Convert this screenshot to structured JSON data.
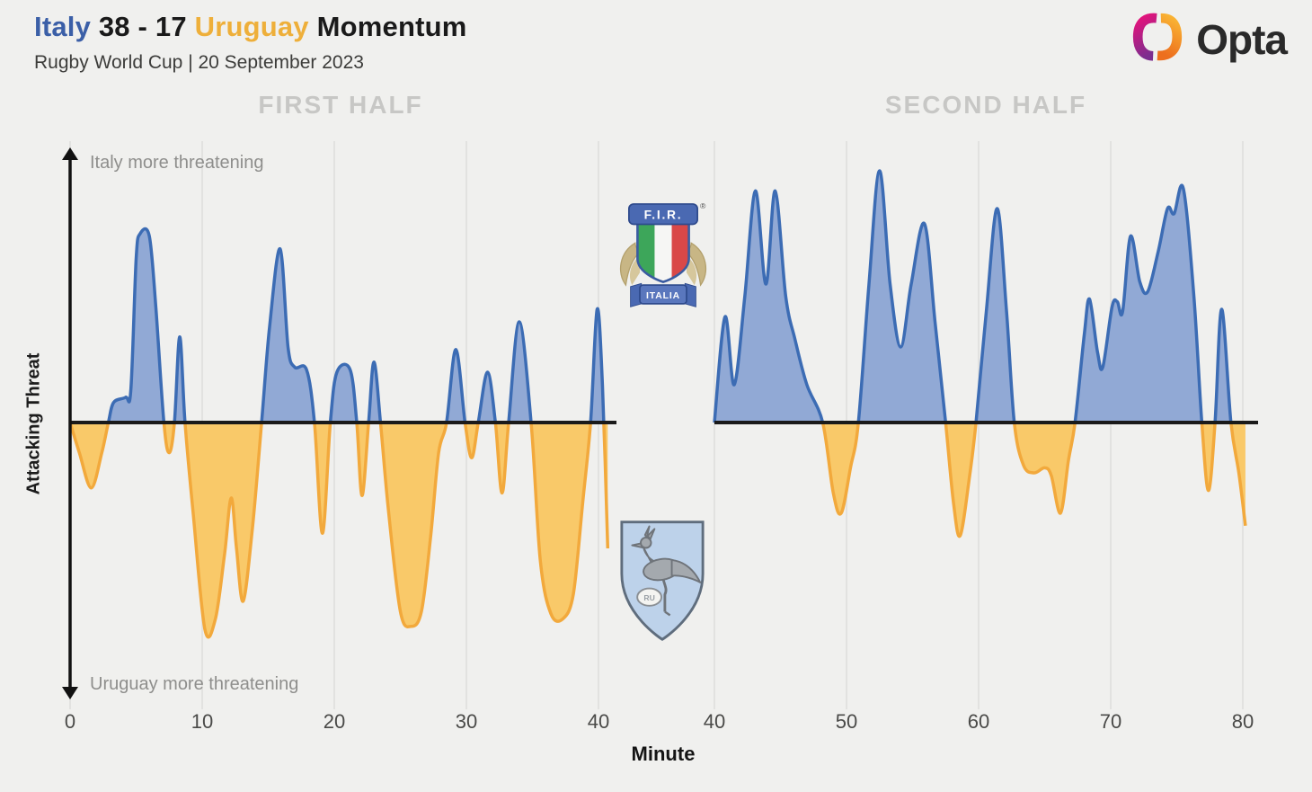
{
  "header": {
    "team_home": "Italy",
    "score": "38 - 17",
    "team_away": "Uruguay",
    "title_suffix": "Momentum",
    "subtitle": "Rugby World Cup | 20 September 2023"
  },
  "brand": {
    "logo_text": "Opta"
  },
  "sections": {
    "first_half": "FIRST HALF",
    "second_half": "SECOND HALF"
  },
  "axis": {
    "y_label": "Attacking Threat",
    "x_label": "Minute",
    "top_annotation": "Italy more threatening",
    "bottom_annotation": "Uruguay more threatening"
  },
  "badges": {
    "italy": {
      "acronym": "F.I.R.",
      "banner": "ITALIA",
      "registered": "®"
    },
    "uruguay": {
      "monogram": "RU"
    }
  },
  "colors": {
    "background": "#f0f0ee",
    "italy_blue_text": "#3b5fa7",
    "uruguay_orange_text": "#eeaf3a",
    "area_blue_fill": "#91a9d5",
    "area_blue_stroke": "#3c6cb4",
    "area_orange_fill": "#f9c969",
    "area_orange_stroke": "#f2a93c",
    "zero_line": "#1a1a1a",
    "gridline": "#e2e2e0",
    "axis_arrow": "#111111"
  },
  "chart_data": {
    "type": "area",
    "title": "Italy 38 - 17 Uruguay Momentum",
    "xlabel": "Minute",
    "ylabel": "Attacking Threat",
    "value_range": [
      -1,
      1
    ],
    "positive_meaning": "Italy more threatening",
    "negative_meaning": "Uruguay more threatening",
    "grid": "vertical-only",
    "halves": [
      {
        "label": "FIRST HALF",
        "x_ticks": [
          0,
          10,
          20,
          30,
          40
        ],
        "points": [
          [
            0,
            0
          ],
          [
            0.7,
            -0.12
          ],
          [
            1.6,
            -0.26
          ],
          [
            2.4,
            -0.12
          ],
          [
            2.9,
            0
          ],
          [
            3.3,
            0.08
          ],
          [
            4.2,
            0.1
          ],
          [
            4.6,
            0.13
          ],
          [
            5.0,
            0.65
          ],
          [
            5.3,
            0.75
          ],
          [
            6.0,
            0.74
          ],
          [
            6.5,
            0.45
          ],
          [
            7.1,
            0
          ],
          [
            7.5,
            -0.12
          ],
          [
            7.9,
            0
          ],
          [
            8.3,
            0.34
          ],
          [
            8.7,
            0
          ],
          [
            9.3,
            -0.35
          ],
          [
            10.2,
            -0.82
          ],
          [
            11.0,
            -0.78
          ],
          [
            11.7,
            -0.52
          ],
          [
            12.2,
            -0.3
          ],
          [
            12.6,
            -0.5
          ],
          [
            13.1,
            -0.71
          ],
          [
            13.8,
            -0.42
          ],
          [
            14.5,
            0
          ],
          [
            15.1,
            0.38
          ],
          [
            15.9,
            0.69
          ],
          [
            16.5,
            0.3
          ],
          [
            17.0,
            0.22
          ],
          [
            17.9,
            0.21
          ],
          [
            18.5,
            0
          ],
          [
            19.1,
            -0.44
          ],
          [
            19.7,
            0
          ],
          [
            20.2,
            0.2
          ],
          [
            21.2,
            0.21
          ],
          [
            21.7,
            0
          ],
          [
            22.1,
            -0.29
          ],
          [
            22.6,
            0
          ],
          [
            23.0,
            0.24
          ],
          [
            23.5,
            0
          ],
          [
            24.1,
            -0.35
          ],
          [
            25.0,
            -0.75
          ],
          [
            25.8,
            -0.81
          ],
          [
            26.6,
            -0.75
          ],
          [
            27.3,
            -0.45
          ],
          [
            27.9,
            -0.12
          ],
          [
            28.5,
            0
          ],
          [
            29.2,
            0.29
          ],
          [
            29.9,
            0
          ],
          [
            30.4,
            -0.14
          ],
          [
            30.9,
            0
          ],
          [
            31.6,
            0.2
          ],
          [
            32.2,
            0
          ],
          [
            32.7,
            -0.28
          ],
          [
            33.2,
            0
          ],
          [
            34.0,
            0.4
          ],
          [
            34.9,
            0
          ],
          [
            35.6,
            -0.55
          ],
          [
            36.4,
            -0.76
          ],
          [
            37.3,
            -0.78
          ],
          [
            38.1,
            -0.68
          ],
          [
            38.8,
            -0.32
          ],
          [
            39.4,
            0
          ],
          [
            39.9,
            0.45
          ],
          [
            40.3,
            0.15
          ],
          [
            40.7,
            -0.5
          ]
        ]
      },
      {
        "label": "SECOND HALF",
        "x_ticks": [
          40,
          50,
          60,
          70,
          80
        ],
        "points": [
          [
            40,
            0
          ],
          [
            40.8,
            0.42
          ],
          [
            41.5,
            0.15
          ],
          [
            42.3,
            0.5
          ],
          [
            43.1,
            0.92
          ],
          [
            43.9,
            0.55
          ],
          [
            44.6,
            0.92
          ],
          [
            45.4,
            0.5
          ],
          [
            46.1,
            0.33
          ],
          [
            47.0,
            0.15
          ],
          [
            48.2,
            0
          ],
          [
            49.0,
            -0.28
          ],
          [
            49.6,
            -0.36
          ],
          [
            50.3,
            -0.18
          ],
          [
            50.9,
            0
          ],
          [
            51.7,
            0.55
          ],
          [
            52.5,
            1.0
          ],
          [
            53.3,
            0.55
          ],
          [
            54.1,
            0.3
          ],
          [
            54.9,
            0.55
          ],
          [
            55.9,
            0.79
          ],
          [
            56.7,
            0.4
          ],
          [
            57.5,
            0
          ],
          [
            58.1,
            -0.32
          ],
          [
            58.6,
            -0.45
          ],
          [
            59.3,
            -0.22
          ],
          [
            59.8,
            0
          ],
          [
            60.6,
            0.45
          ],
          [
            61.4,
            0.85
          ],
          [
            62.1,
            0.45
          ],
          [
            62.7,
            0
          ],
          [
            63.4,
            -0.17
          ],
          [
            64.2,
            -0.2
          ],
          [
            65.0,
            -0.18
          ],
          [
            65.5,
            -0.21
          ],
          [
            66.2,
            -0.36
          ],
          [
            66.8,
            -0.15
          ],
          [
            67.3,
            0
          ],
          [
            68.0,
            0.35
          ],
          [
            68.4,
            0.49
          ],
          [
            69.0,
            0.28
          ],
          [
            69.4,
            0.22
          ],
          [
            70.1,
            0.46
          ],
          [
            70.5,
            0.48
          ],
          [
            70.9,
            0.44
          ],
          [
            71.5,
            0.74
          ],
          [
            72.2,
            0.56
          ],
          [
            72.8,
            0.52
          ],
          [
            73.6,
            0.68
          ],
          [
            74.3,
            0.85
          ],
          [
            74.8,
            0.83
          ],
          [
            75.5,
            0.93
          ],
          [
            76.3,
            0.5
          ],
          [
            76.9,
            0
          ],
          [
            77.4,
            -0.27
          ],
          [
            77.9,
            0
          ],
          [
            78.4,
            0.45
          ],
          [
            79.1,
            0
          ],
          [
            79.7,
            -0.2
          ],
          [
            80.2,
            -0.41
          ]
        ]
      }
    ]
  }
}
